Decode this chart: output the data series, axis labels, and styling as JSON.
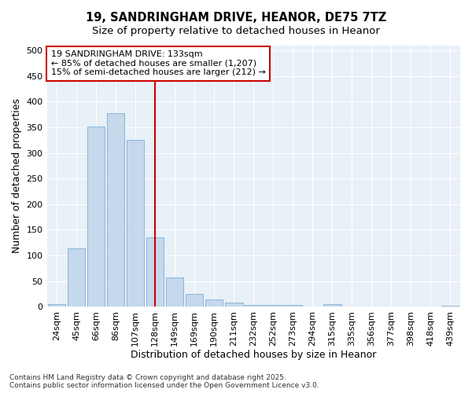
{
  "title_line1": "19, SANDRINGHAM DRIVE, HEANOR, DE75 7TZ",
  "title_line2": "Size of property relative to detached houses in Heanor",
  "xlabel": "Distribution of detached houses by size in Heanor",
  "ylabel": "Number of detached properties",
  "categories": [
    "24sqm",
    "45sqm",
    "66sqm",
    "86sqm",
    "107sqm",
    "128sqm",
    "149sqm",
    "169sqm",
    "190sqm",
    "211sqm",
    "232sqm",
    "252sqm",
    "273sqm",
    "294sqm",
    "315sqm",
    "335sqm",
    "356sqm",
    "377sqm",
    "398sqm",
    "418sqm",
    "439sqm"
  ],
  "values": [
    5,
    114,
    352,
    378,
    325,
    136,
    57,
    25,
    14,
    8,
    3,
    3,
    3,
    1,
    5,
    1,
    1,
    1,
    0,
    0,
    2
  ],
  "bar_color": "#c5d8ec",
  "bar_edge_color": "#7aafd4",
  "vline_color": "#cc0000",
  "vline_pos": 5.5,
  "annotation_text": "19 SANDRINGHAM DRIVE: 133sqm\n← 85% of detached houses are smaller (1,207)\n15% of semi-detached houses are larger (212) →",
  "annotation_box_facecolor": "#ffffff",
  "annotation_box_edgecolor": "#cc0000",
  "ylim": [
    0,
    510
  ],
  "yticks": [
    0,
    50,
    100,
    150,
    200,
    250,
    300,
    350,
    400,
    450,
    500
  ],
  "fig_facecolor": "#ffffff",
  "plot_facecolor": "#e8f0f8",
  "grid_color": "#ffffff",
  "footer_line1": "Contains HM Land Registry data © Crown copyright and database right 2025.",
  "footer_line2": "Contains public sector information licensed under the Open Government Licence v3.0.",
  "title_fontsize": 10.5,
  "subtitle_fontsize": 9.5,
  "axis_label_fontsize": 9,
  "tick_fontsize": 8,
  "annotation_fontsize": 8,
  "footer_fontsize": 6.5
}
